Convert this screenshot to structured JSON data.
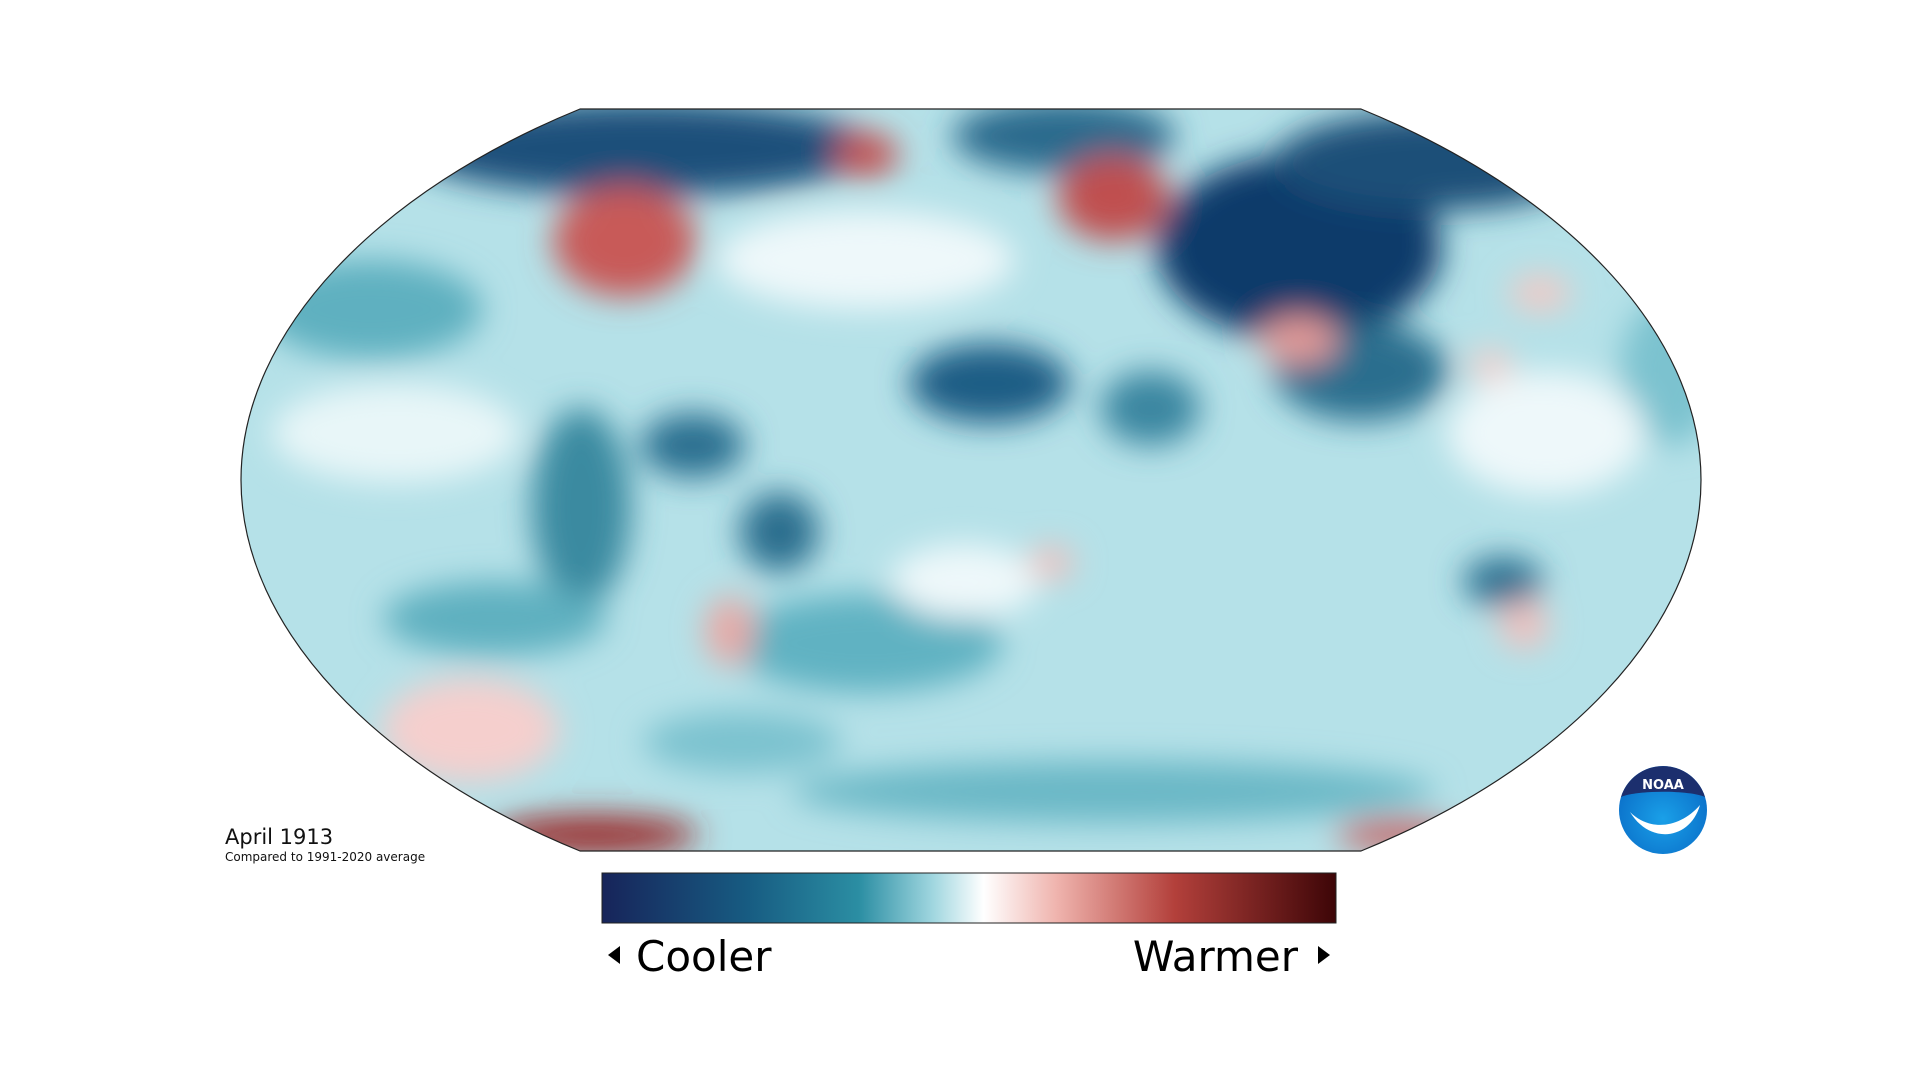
{
  "map": {
    "title": "April 1913",
    "subtitle": "Compared to 1991-2020 average"
  },
  "legend": {
    "low_label": "Cooler",
    "high_label": "Warmer"
  },
  "logo": {
    "text": "NOAA"
  }
}
